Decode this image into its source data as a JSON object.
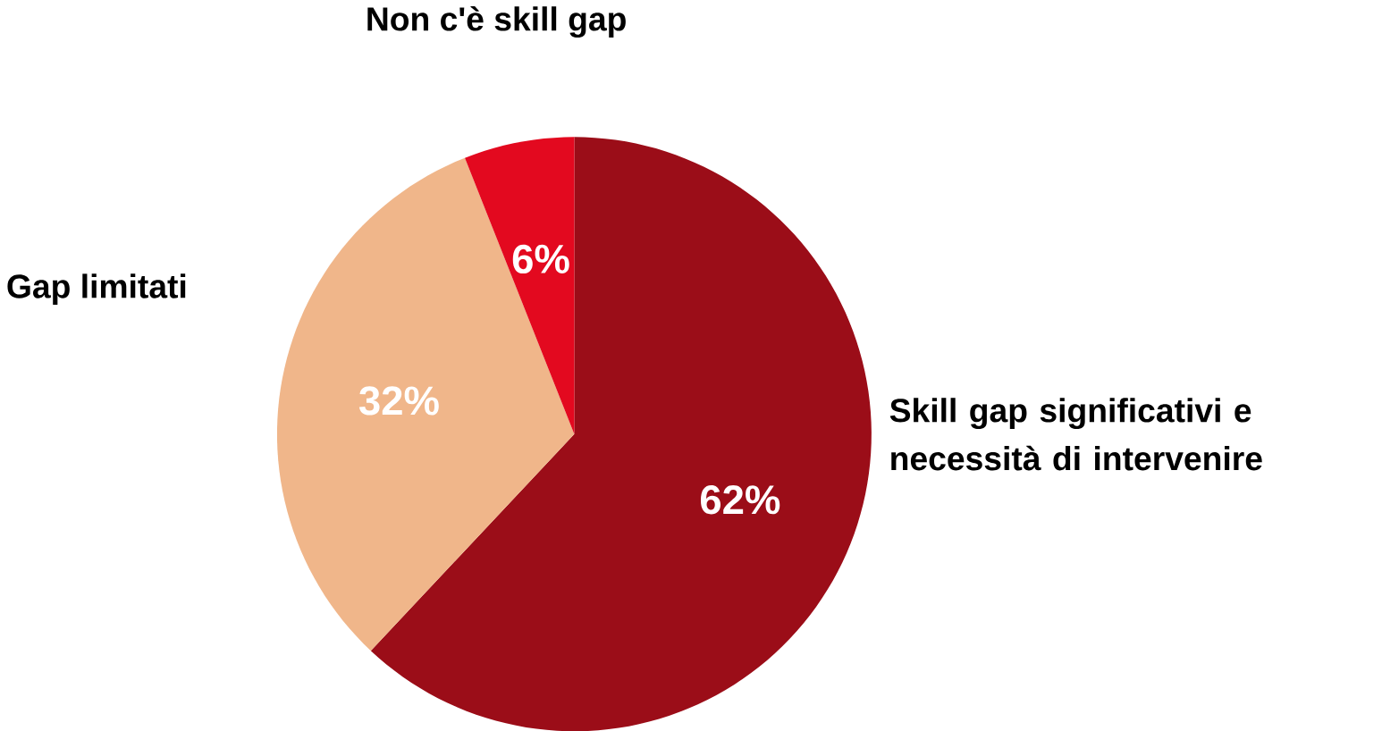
{
  "chart_data": {
    "type": "pie",
    "categories": [
      "Skill gap significativi e necessità di intervenire",
      "Gap limitati",
      "Non c'è skill gap"
    ],
    "values": [
      62,
      32,
      6
    ],
    "colors": [
      "#9b0d18",
      "#f0b68a",
      "#e3091f"
    ],
    "value_labels": [
      "62%",
      "32%",
      "6%"
    ]
  }
}
